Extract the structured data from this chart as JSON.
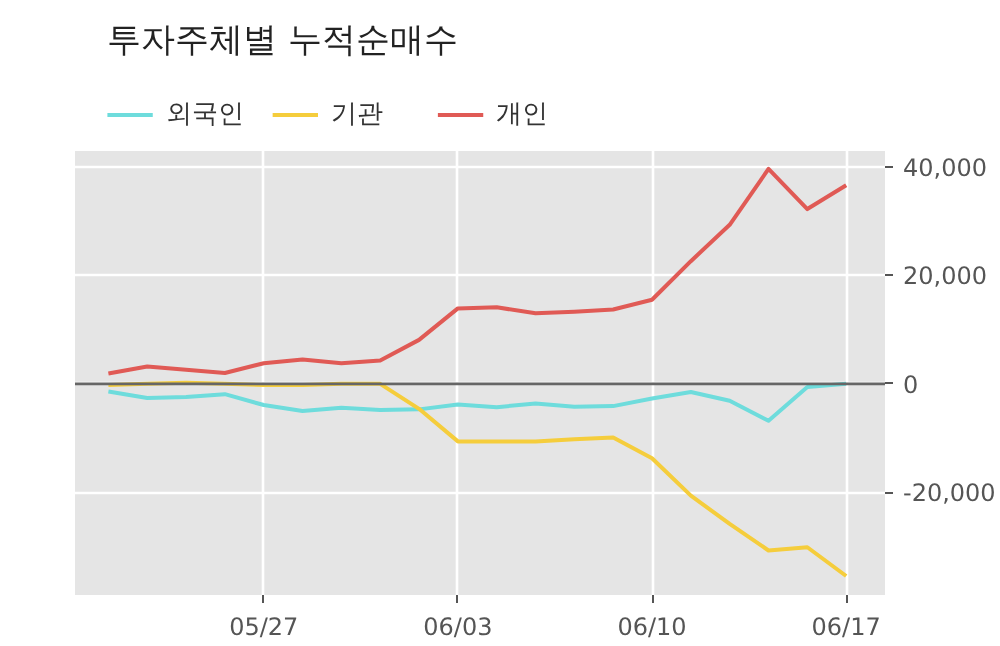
{
  "chart_data": {
    "type": "line",
    "title": "투자주체별 누적순매수",
    "categories": [
      null,
      null,
      null,
      null,
      "05/27",
      null,
      null,
      null,
      null,
      "06/03",
      null,
      null,
      null,
      null,
      "06/10",
      null,
      null,
      null,
      null,
      "06/17"
    ],
    "series": [
      {
        "name": "외국인",
        "color": "#6edcdc",
        "values": [
          -1400,
          -2600,
          -2400,
          -1900,
          -3900,
          -5000,
          -4400,
          -4800,
          -4700,
          -3800,
          -4300,
          -3600,
          -4200,
          -4100,
          -2700,
          -1500,
          -3100,
          -6800,
          -600,
          0
        ]
      },
      {
        "name": "기관",
        "color": "#f5cd3c",
        "values": [
          -200,
          0,
          200,
          0,
          -200,
          -200,
          0,
          0,
          -4600,
          -10600,
          -10600,
          -10600,
          -10200,
          -9900,
          -13700,
          -20600,
          -25800,
          -30700,
          -30100,
          -35400
        ]
      },
      {
        "name": "개인",
        "color": "#e05a55",
        "values": [
          1900,
          3200,
          2600,
          2000,
          3800,
          4500,
          3800,
          4300,
          8100,
          13900,
          14100,
          13000,
          13300,
          13700,
          15500,
          22600,
          29300,
          39600,
          32200,
          36600
        ]
      }
    ],
    "ylim": [
      -38900,
      42900
    ],
    "yticks": [
      {
        "value": -20000,
        "label": "-20,000"
      },
      0,
      {
        "value": 20000,
        "label": "20,000"
      },
      {
        "value": 40000,
        "label": "40,000"
      }
    ],
    "ref_lines": [
      {
        "axis": "y",
        "value": 0,
        "color": "#666666"
      }
    ],
    "grid": true,
    "legend": "top left",
    "line_style": "solid",
    "marker": "none"
  }
}
